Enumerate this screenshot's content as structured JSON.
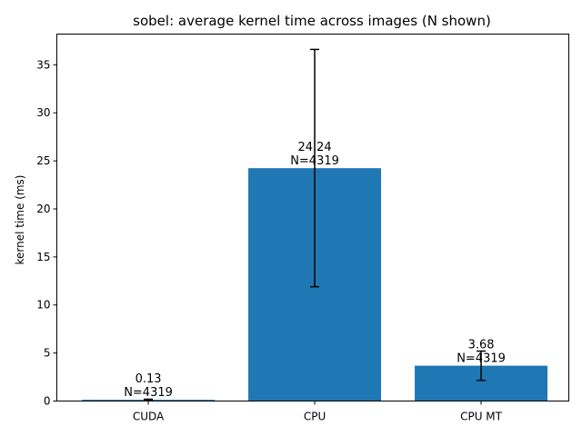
{
  "chart_data": {
    "type": "bar",
    "title": "sobel: average kernel time across images (N shown)",
    "xlabel": "",
    "ylabel": "kernel time (ms)",
    "categories": [
      "CUDA",
      "CPU",
      "CPU MT"
    ],
    "values": [
      0.13,
      24.24,
      3.68
    ],
    "error_low": [
      0.07,
      11.9,
      2.15
    ],
    "error_high": [
      0.19,
      36.6,
      5.2
    ],
    "value_labels": [
      "0.13",
      "24.24",
      "3.68"
    ],
    "n_labels": [
      "N=4319",
      "N=4319",
      "N=4319"
    ],
    "ylim": [
      0,
      38.2
    ],
    "yticks": [
      0,
      5,
      10,
      15,
      20,
      25,
      30,
      35
    ],
    "grid": false,
    "bar_color": "#1f77b4"
  }
}
